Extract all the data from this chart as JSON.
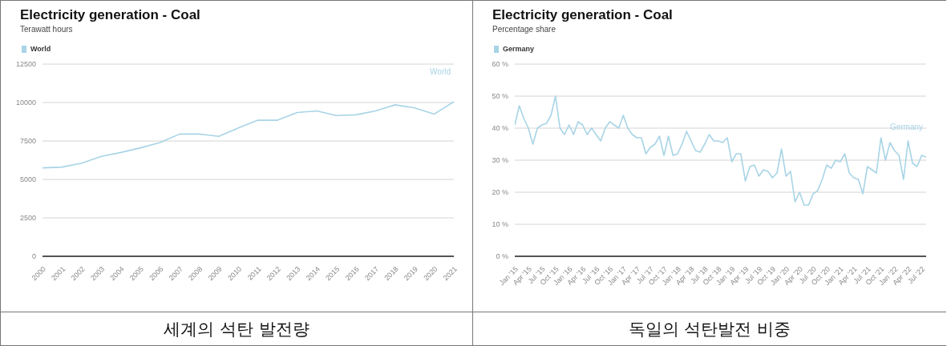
{
  "chart_data": [
    {
      "type": "line",
      "title": "Electricity generation - Coal",
      "subtitle": "Terawatt hours",
      "categories": [
        "2000",
        "2001",
        "2002",
        "2003",
        "2004",
        "2005",
        "2006",
        "2007",
        "2008",
        "2009",
        "2010",
        "2011",
        "2012",
        "2013",
        "2014",
        "2015",
        "2016",
        "2017",
        "2018",
        "2019",
        "2020",
        "2021"
      ],
      "series": [
        {
          "name": "World",
          "color": "#a8d4e6",
          "values": [
            5750,
            5800,
            6050,
            6500,
            6750,
            7050,
            7400,
            7950,
            7950,
            7800,
            8350,
            8850,
            8850,
            9350,
            9450,
            9150,
            9200,
            9450,
            9850,
            9650,
            9250,
            10050
          ]
        }
      ],
      "ylim": [
        0,
        12500
      ],
      "yticks": [
        0,
        2500,
        5000,
        7500,
        10000,
        12500
      ],
      "grid": "y",
      "legend": "top left",
      "marker": "none",
      "line_style": "solid",
      "annotations": [
        "세계의 석탄 발전량"
      ]
    },
    {
      "type": "line",
      "title": "Electricity generation - Coal",
      "subtitle": "Percentage share",
      "x": [
        "2015-01",
        "2015-02",
        "2015-03",
        "2015-04",
        "2015-05",
        "2015-06",
        "2015-07",
        "2015-08",
        "2015-09",
        "2015-10",
        "2015-11",
        "2015-12",
        "2016-01",
        "2016-02",
        "2016-03",
        "2016-04",
        "2016-05",
        "2016-06",
        "2016-07",
        "2016-08",
        "2016-09",
        "2016-10",
        "2016-11",
        "2016-12",
        "2017-01",
        "2017-02",
        "2017-03",
        "2017-04",
        "2017-05",
        "2017-06",
        "2017-07",
        "2017-08",
        "2017-09",
        "2017-10",
        "2017-11",
        "2017-12",
        "2018-01",
        "2018-02",
        "2018-03",
        "2018-04",
        "2018-05",
        "2018-06",
        "2018-07",
        "2018-08",
        "2018-09",
        "2018-10",
        "2018-11",
        "2018-12",
        "2019-01",
        "2019-02",
        "2019-03",
        "2019-04",
        "2019-05",
        "2019-06",
        "2019-07",
        "2019-08",
        "2019-09",
        "2019-10",
        "2019-11",
        "2019-12",
        "2020-01",
        "2020-02",
        "2020-03",
        "2020-04",
        "2020-05",
        "2020-06",
        "2020-07",
        "2020-08",
        "2020-09",
        "2020-10",
        "2020-11",
        "2020-12",
        "2021-01",
        "2021-02",
        "2021-03",
        "2021-04",
        "2021-05",
        "2021-06",
        "2021-07",
        "2021-08",
        "2021-09",
        "2021-10",
        "2021-11",
        "2021-12",
        "2022-01",
        "2022-02",
        "2022-03",
        "2022-04",
        "2022-05",
        "2022-06",
        "2022-07",
        "2022-08"
      ],
      "series": [
        {
          "name": "Germany",
          "color": "#a8d4e6",
          "values": [
            41,
            47,
            43,
            40,
            35,
            40,
            41,
            41.5,
            44,
            50,
            40,
            38,
            41,
            38,
            42,
            41,
            38,
            40,
            38,
            36,
            40,
            42,
            41,
            40,
            44,
            40,
            38,
            37,
            37,
            32,
            34,
            35,
            37.5,
            31.5,
            37.5,
            31.5,
            32,
            35,
            39,
            36,
            33,
            32.5,
            35,
            38,
            36,
            36,
            35.5,
            37,
            29.5,
            32,
            32,
            23.5,
            28,
            28.5,
            25,
            27,
            26.5,
            24.5,
            26,
            33.5,
            25,
            26.5,
            17,
            20,
            16,
            16,
            19.5,
            20.5,
            24,
            28.5,
            27.5,
            30,
            29.5,
            32,
            26,
            24.5,
            24,
            19.5,
            28,
            27,
            26,
            37,
            30,
            35.5,
            33,
            31.5,
            24,
            36,
            29,
            28,
            31.5,
            31
          ]
        }
      ],
      "xlim": [
        "2015-01",
        "2022-08"
      ],
      "xticks": [
        {
          "value": "2015-01",
          "label": "Jan '15"
        },
        {
          "value": "2015-04",
          "label": "Apr '15"
        },
        {
          "value": "2015-07",
          "label": "Jul '15"
        },
        {
          "value": "2015-10",
          "label": "Oct '15"
        },
        {
          "value": "2016-01",
          "label": "Jan '16"
        },
        {
          "value": "2016-04",
          "label": "Apr '16"
        },
        {
          "value": "2016-07",
          "label": "Jul '16"
        },
        {
          "value": "2016-10",
          "label": "Oct '16"
        },
        {
          "value": "2017-01",
          "label": "Jan '17"
        },
        {
          "value": "2017-04",
          "label": "Apr '17"
        },
        {
          "value": "2017-07",
          "label": "Jul '17"
        },
        {
          "value": "2017-10",
          "label": "Oct '17"
        },
        {
          "value": "2018-01",
          "label": "Jan '18"
        },
        {
          "value": "2018-04",
          "label": "Apr '18"
        },
        {
          "value": "2018-07",
          "label": "Jul '18"
        },
        {
          "value": "2018-10",
          "label": "Oct '18"
        },
        {
          "value": "2019-01",
          "label": "Jan '19"
        },
        {
          "value": "2019-04",
          "label": "Apr '19"
        },
        {
          "value": "2019-07",
          "label": "Jul '19"
        },
        {
          "value": "2019-10",
          "label": "Oct '19"
        },
        {
          "value": "2020-01",
          "label": "Jan '20"
        },
        {
          "value": "2020-04",
          "label": "Apr '20"
        },
        {
          "value": "2020-07",
          "label": "Jul '20"
        },
        {
          "value": "2020-10",
          "label": "Oct '20"
        },
        {
          "value": "2021-01",
          "label": "Jan '21"
        },
        {
          "value": "2021-04",
          "label": "Apr '21"
        },
        {
          "value": "2021-07",
          "label": "Jul '21"
        },
        {
          "value": "2021-10",
          "label": "Oct '21"
        },
        {
          "value": "2022-01",
          "label": "Jan '22"
        },
        {
          "value": "2022-04",
          "label": "Apr '22"
        },
        {
          "value": "2022-07",
          "label": "Jul '22"
        }
      ],
      "ylim": [
        0,
        60
      ],
      "yticks": [
        {
          "value": 0,
          "label": "0 %"
        },
        {
          "value": 10,
          "label": "10 %"
        },
        {
          "value": 20,
          "label": "20 %"
        },
        {
          "value": 30,
          "label": "30 %"
        },
        {
          "value": 40,
          "label": "40 %"
        },
        {
          "value": 50,
          "label": "50 %"
        },
        {
          "value": 60,
          "label": "60 %"
        }
      ],
      "grid": "y",
      "legend": "top left",
      "marker": "none",
      "line_style": "solid",
      "annotations": [
        "독일의 석탄발전 비중"
      ]
    }
  ]
}
